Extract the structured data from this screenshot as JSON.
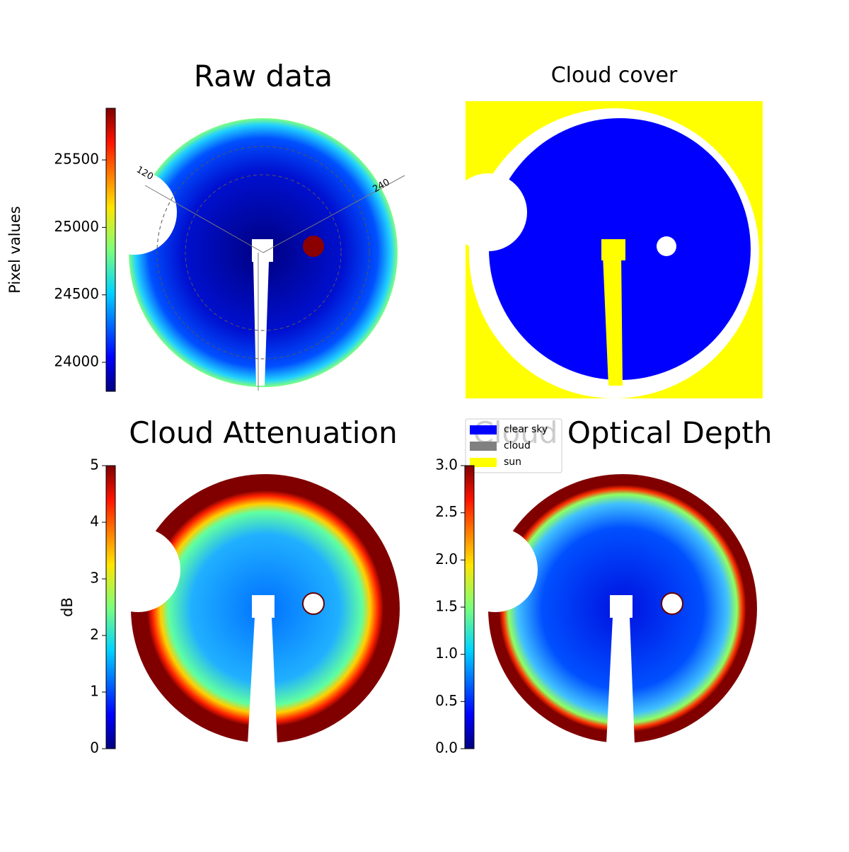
{
  "panels": [
    {
      "title": "Raw data",
      "annotations": [
        "120",
        "240"
      ],
      "colorbar": {
        "label": "Pixel values",
        "lim": [
          23785,
          25883
        ],
        "ticks": [
          24000,
          24500,
          25000,
          25500
        ]
      }
    },
    {
      "title": "Cloud cover",
      "legend": [
        {
          "name": "clear sky",
          "color": "#0000ff"
        },
        {
          "name": "cloud",
          "color": "#808080"
        },
        {
          "name": "sun",
          "color": "#ffff00"
        }
      ]
    },
    {
      "title": "Cloud Attenuation",
      "colorbar": {
        "label": "dB",
        "lim": [
          0,
          5
        ],
        "ticks": [
          0,
          1,
          2,
          3,
          4,
          5
        ]
      }
    },
    {
      "title": "Cloud Optical Depth",
      "colorbar": {
        "lim": [
          0,
          3
        ],
        "ticks": [
          {
            "value": 0,
            "label": "0.0"
          },
          0.5,
          {
            "value": 1,
            "label": "1.0"
          },
          1.5,
          {
            "value": 2,
            "label": "2.0"
          },
          2.5,
          {
            "value": 3,
            "label": "3.0"
          }
        ]
      }
    }
  ]
}
